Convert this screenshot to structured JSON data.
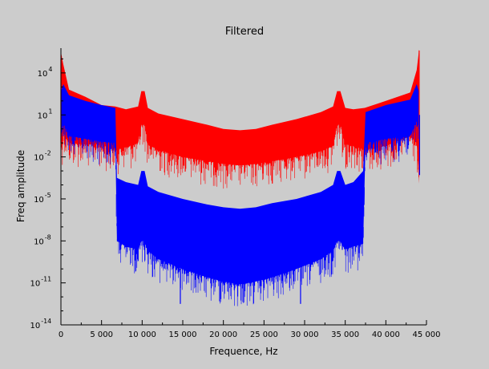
{
  "chart_data": {
    "type": "area",
    "title": "Filtered",
    "xlabel": "Frequence, Hz",
    "ylabel": "Freq amplitude",
    "xlim": [
      0,
      45000
    ],
    "ylim_log10": [
      -14,
      5
    ],
    "y_scale": "log",
    "grid": false,
    "legend": "none",
    "x_ticks": [
      {
        "value": 0,
        "label": "0"
      },
      {
        "value": 5000,
        "label": "5 000"
      },
      {
        "value": 10000,
        "label": "10 000"
      },
      {
        "value": 15000,
        "label": "15 000"
      },
      {
        "value": 20000,
        "label": "20 000"
      },
      {
        "value": 25000,
        "label": "25 000"
      },
      {
        "value": 30000,
        "label": "30 000"
      },
      {
        "value": 35000,
        "label": "35 000"
      },
      {
        "value": 40000,
        "label": "40 000"
      },
      {
        "value": 45000,
        "label": "45 000"
      }
    ],
    "y_ticks": [
      {
        "exp": -14,
        "base": "10",
        "sup": "-14"
      },
      {
        "exp": -11,
        "base": "10",
        "sup": "-11"
      },
      {
        "exp": -8,
        "base": "10",
        "sup": "-8"
      },
      {
        "exp": -5,
        "base": "10",
        "sup": "-5"
      },
      {
        "exp": -2,
        "base": "10",
        "sup": "-2"
      },
      {
        "exp": 1,
        "base": "10",
        "sup": "1"
      },
      {
        "exp": 4,
        "base": "10",
        "sup": "4"
      }
    ],
    "series": [
      {
        "color": "#ff0000",
        "x": [
          0,
          300,
          1000,
          3000,
          5000,
          6700,
          8000,
          9500,
          9900,
          10300,
          10700,
          12000,
          15000,
          18000,
          20000,
          22050,
          24000,
          26000,
          29000,
          32000,
          33500,
          34000,
          34400,
          35000,
          36000,
          37400,
          40000,
          43000,
          43800,
          44100
        ],
        "y_top": [
          5.5,
          4.6,
          2.8,
          2.3,
          1.7,
          1.6,
          1.4,
          1.6,
          2.7,
          2.7,
          1.5,
          1.1,
          0.7,
          0.3,
          0.0,
          -0.1,
          0.0,
          0.3,
          0.7,
          1.2,
          1.6,
          2.7,
          2.7,
          1.5,
          1.4,
          1.5,
          2.0,
          2.6,
          4.2,
          5.7
        ],
        "y_bottom": [
          -1.5,
          -0.3,
          -1.0,
          -1.1,
          -1.1,
          -1.5,
          -1.3,
          -1.0,
          0.3,
          0.3,
          -1.1,
          -1.5,
          -2.0,
          -2.3,
          -2.5,
          -2.6,
          -2.5,
          -2.3,
          -2.0,
          -1.6,
          -1.2,
          0.3,
          0.3,
          -1.1,
          -1.2,
          -1.5,
          -1.2,
          -0.5,
          -1.0,
          -3.9
        ]
      },
      {
        "color": "#0000ff",
        "x": [
          0,
          300,
          1000,
          3000,
          5000,
          6700,
          6900,
          8000,
          9500,
          9900,
          10300,
          10700,
          12000,
          15000,
          18000,
          20000,
          22050,
          24000,
          26000,
          29000,
          32000,
          33500,
          34000,
          34400,
          35000,
          36000,
          37200,
          37500,
          40000,
          43000,
          43800,
          44100
        ],
        "y_top": [
          2.7,
          3.2,
          2.4,
          2.0,
          1.7,
          1.5,
          -3.5,
          -3.8,
          -4.0,
          -3.0,
          -3.0,
          -4.1,
          -4.5,
          -5.0,
          -5.4,
          -5.6,
          -5.7,
          -5.6,
          -5.3,
          -5.0,
          -4.5,
          -4.0,
          -3.0,
          -3.0,
          -4.0,
          -3.8,
          -3.0,
          1.2,
          1.7,
          2.1,
          3.2,
          2.6
        ],
        "y_bottom": [
          -0.5,
          0.4,
          -0.5,
          -0.7,
          -0.9,
          -1.0,
          -8.0,
          -8.4,
          -8.6,
          -8.0,
          -8.0,
          -8.7,
          -9.3,
          -10.0,
          -10.6,
          -10.9,
          -11.1,
          -10.9,
          -10.6,
          -10.0,
          -9.3,
          -8.7,
          -8.0,
          -8.0,
          -8.6,
          -8.4,
          -8.2,
          -1.0,
          -0.7,
          -0.5,
          0.6,
          0.0
        ]
      }
    ],
    "spikes": [
      {
        "color": "#ff0000",
        "x": 0,
        "y": 5.0,
        "y_from": -1.0
      },
      {
        "color": "#ff0000",
        "x": 44100,
        "y": 5.6,
        "y_from": -2.5
      },
      {
        "color": "#0000ff",
        "x": 44150,
        "y": 1.0,
        "y_from": -3.3
      },
      {
        "color": "#0000ff",
        "x": 14700,
        "y": -10.0,
        "y_from": -12.5
      },
      {
        "color": "#0000ff",
        "x": 29500,
        "y": -10.0,
        "y_from": -12.5
      }
    ]
  }
}
